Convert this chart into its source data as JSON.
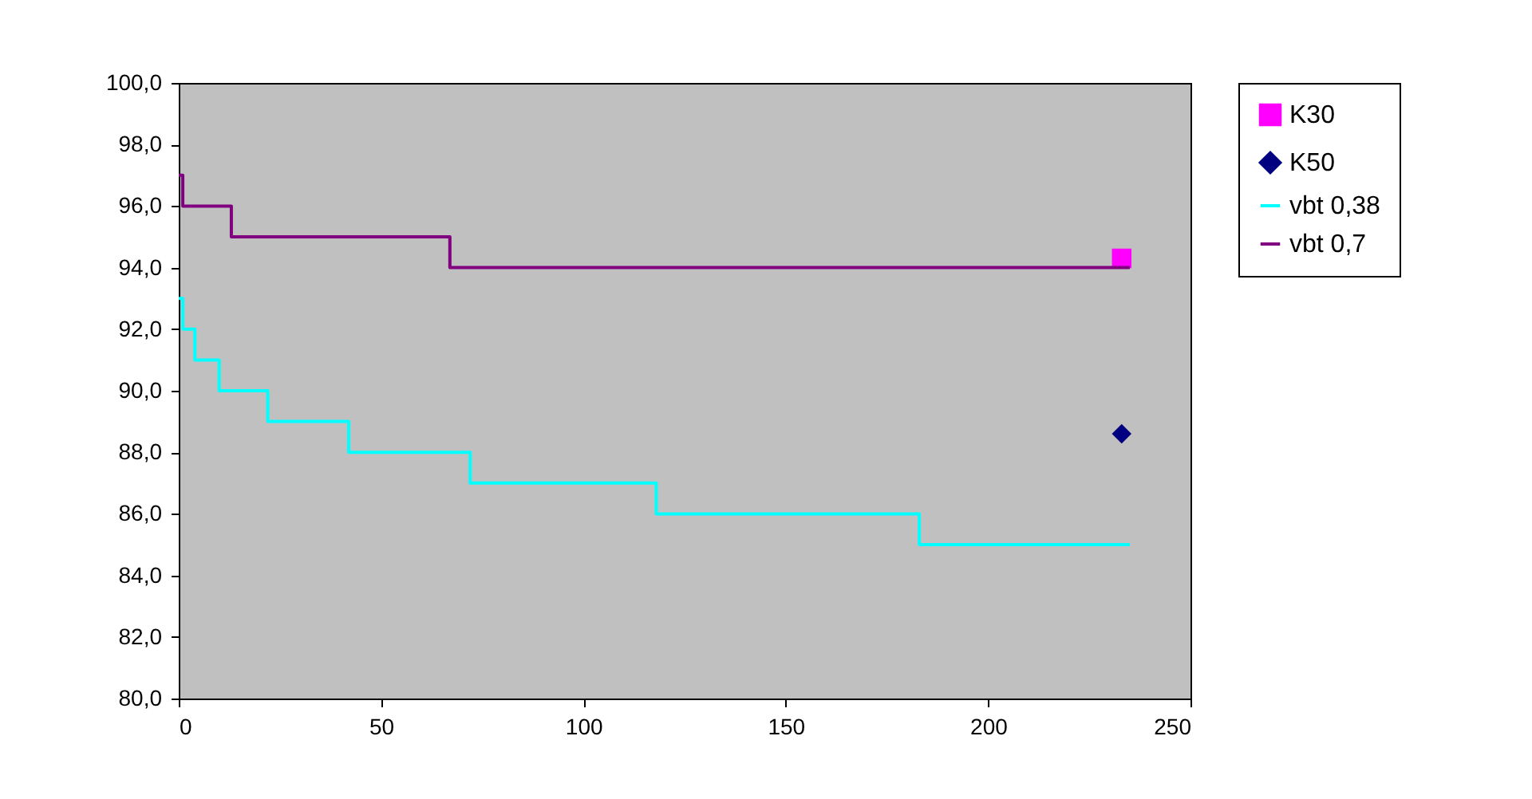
{
  "chart_data": {
    "type": "step",
    "xlim": [
      0,
      250
    ],
    "xticks": [
      0,
      50,
      100,
      150,
      200,
      250
    ],
    "ylim": [
      80,
      100
    ],
    "yticks": [
      {
        "value": 80,
        "label": "80,0"
      },
      {
        "value": 82,
        "label": "82,0"
      },
      {
        "value": 84,
        "label": "84,0"
      },
      {
        "value": 86,
        "label": "86,0"
      },
      {
        "value": 88,
        "label": "88,0"
      },
      {
        "value": 90,
        "label": "90,0"
      },
      {
        "value": 92,
        "label": "92,0"
      },
      {
        "value": 94,
        "label": "94,0"
      },
      {
        "value": 96,
        "label": "96,0"
      },
      {
        "value": 98,
        "label": "98,0"
      },
      {
        "value": 100,
        "label": "100,0"
      }
    ],
    "grid": false,
    "legend": "right",
    "series": [
      {
        "name": "K30",
        "type": "scatter",
        "marker": "square",
        "color": "#ff00ff",
        "x": [
          233
        ],
        "values": [
          94.3
        ]
      },
      {
        "name": "K50",
        "type": "scatter",
        "marker": "diamond",
        "color": "#000080",
        "x": [
          233
        ],
        "values": [
          88.6
        ]
      },
      {
        "name": "vbt 0,38",
        "marker": "none",
        "color": "#00ffff",
        "x": [
          0,
          1,
          4,
          10,
          22,
          42,
          72,
          118,
          183,
          235
        ],
        "values": [
          93,
          92,
          91,
          90,
          89,
          88,
          87,
          86,
          85,
          85
        ]
      },
      {
        "name": "vbt 0,7",
        "marker": "none",
        "color": "#800080",
        "x": [
          0,
          1,
          13,
          67,
          235
        ],
        "values": [
          97,
          96,
          95,
          94,
          94
        ]
      }
    ]
  }
}
